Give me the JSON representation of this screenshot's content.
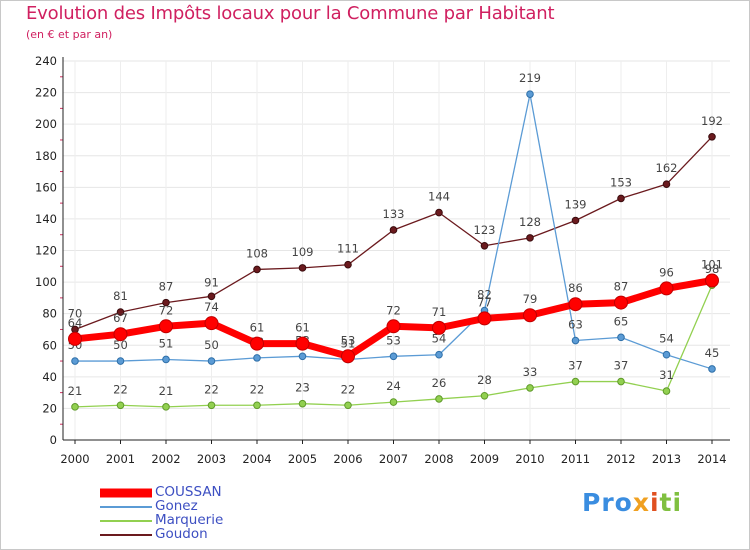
{
  "header": {
    "title": "Evolution des Impôts locaux pour la Commune par Habitant",
    "subtitle": "(en € et par an)"
  },
  "logo": {
    "part1": "Pro",
    "part2": "x",
    "part3": "i",
    "part4": "ti"
  },
  "chart_data": {
    "type": "line",
    "title": "Evolution des Impôts locaux pour la Commune par Habitant",
    "subtitle": "(en € et par an)",
    "xlabel": "",
    "ylabel": "",
    "ylim": [
      0,
      240
    ],
    "yticks": [
      0,
      20,
      40,
      60,
      80,
      100,
      120,
      140,
      160,
      180,
      200,
      220,
      240
    ],
    "categories": [
      "2000",
      "2001",
      "2002",
      "2003",
      "2004",
      "2005",
      "2006",
      "2007",
      "2008",
      "2009",
      "2010",
      "2011",
      "2012",
      "2013",
      "2014"
    ],
    "legend_position": "bottom-left",
    "series": [
      {
        "name": "Goudon",
        "color": "#6b1a1e",
        "values": [
          70,
          81,
          87,
          91,
          108,
          109,
          111,
          133,
          144,
          123,
          128,
          139,
          153,
          162,
          192
        ]
      },
      {
        "name": "Gonez",
        "color": "#5b9bd5",
        "values": [
          50,
          50,
          51,
          50,
          52,
          53,
          51,
          53,
          54,
          82,
          219,
          63,
          65,
          54,
          45
        ]
      },
      {
        "name": "Marquerie",
        "color": "#92d050",
        "values": [
          21,
          22,
          21,
          22,
          22,
          23,
          22,
          24,
          26,
          28,
          33,
          37,
          37,
          31,
          98
        ]
      },
      {
        "name": "COUSSAN",
        "color": "#ff0000",
        "values": [
          64,
          67,
          72,
          74,
          61,
          61,
          53,
          72,
          71,
          77,
          79,
          86,
          87,
          96,
          101
        ]
      }
    ],
    "legend": [
      "COUSSAN",
      "Gonez",
      "Marquerie",
      "Goudon"
    ]
  }
}
